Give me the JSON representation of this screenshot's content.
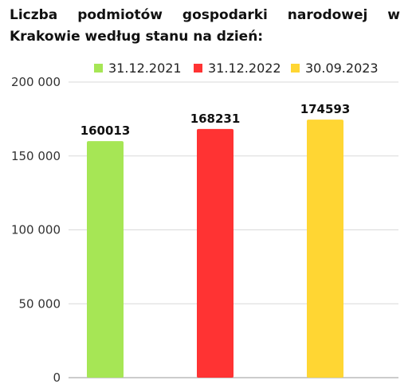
{
  "chart_data": {
    "type": "bar",
    "title": "Liczba podmiotów gospodarki narodowej w Krakowie według stanu na dzień:",
    "xlabel": "",
    "ylabel": "",
    "ylim": [
      0,
      200000
    ],
    "yticks": [
      "0",
      "50 000",
      "100 000",
      "150 000",
      "200 000"
    ],
    "ytick_values": [
      0,
      50000,
      100000,
      150000,
      200000
    ],
    "grid": true,
    "legend_position": "top",
    "series": [
      {
        "name": "31.12.2021",
        "value": 160013,
        "label": "160013",
        "color": "#a6e655"
      },
      {
        "name": "31.12.2022",
        "value": 168231,
        "label": "168231",
        "color": "#ff3333"
      },
      {
        "name": "30.09.2023",
        "value": 174593,
        "label": "174593",
        "color": "#ffd633"
      }
    ]
  }
}
